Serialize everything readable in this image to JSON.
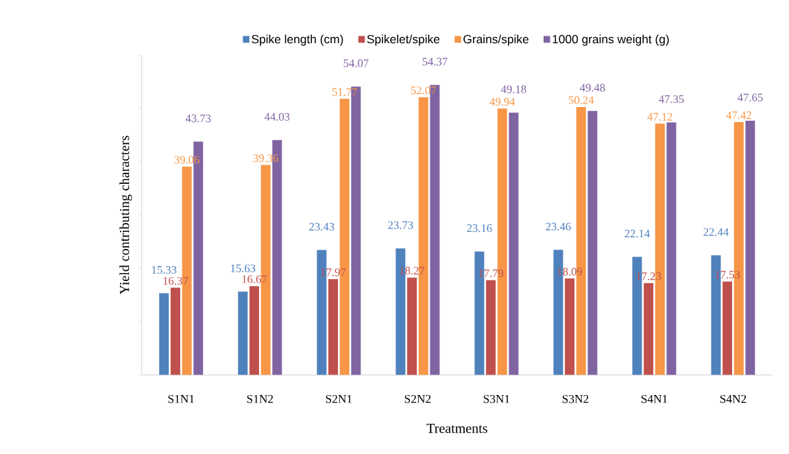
{
  "chart_data": {
    "type": "bar",
    "xlabel": "Treatments",
    "ylabel": "Yield contributing characters",
    "categories": [
      "S1N1",
      "S1N2",
      "S2N1",
      "S2N2",
      "S3N1",
      "S3N2",
      "S4N1",
      "S4N2"
    ],
    "series": [
      {
        "name": "Spike length (cm)",
        "color": "#4f81bd",
        "values": [
          15.33,
          15.63,
          23.43,
          23.73,
          23.16,
          23.46,
          22.14,
          22.44
        ]
      },
      {
        "name": "Spikelet/spike",
        "color": "#c0504d",
        "values": [
          16.37,
          16.67,
          17.97,
          18.27,
          17.79,
          18.09,
          17.23,
          17.53
        ]
      },
      {
        "name": "Grains/spike",
        "color": "#f79646",
        "values": [
          39.06,
          39.36,
          51.77,
          52.07,
          49.94,
          50.24,
          47.12,
          47.42
        ]
      },
      {
        "name": "1000 grains weight (g)",
        "color": "#8064a2",
        "values": [
          43.73,
          44.03,
          54.07,
          54.37,
          49.18,
          49.48,
          47.35,
          47.65
        ]
      }
    ],
    "ylim": [
      0,
      60
    ],
    "yticks": [
      {
        "value": 0,
        "label": null
      },
      {
        "value": 10,
        "label": null
      },
      {
        "value": 20,
        "label": null
      },
      {
        "value": 30,
        "label": null
      },
      {
        "value": 40,
        "label": null
      },
      {
        "value": 50,
        "label": null
      },
      {
        "value": 60,
        "label": null
      }
    ],
    "tick_labels": "x",
    "data_labels": true,
    "legend": "top",
    "grid": false
  }
}
